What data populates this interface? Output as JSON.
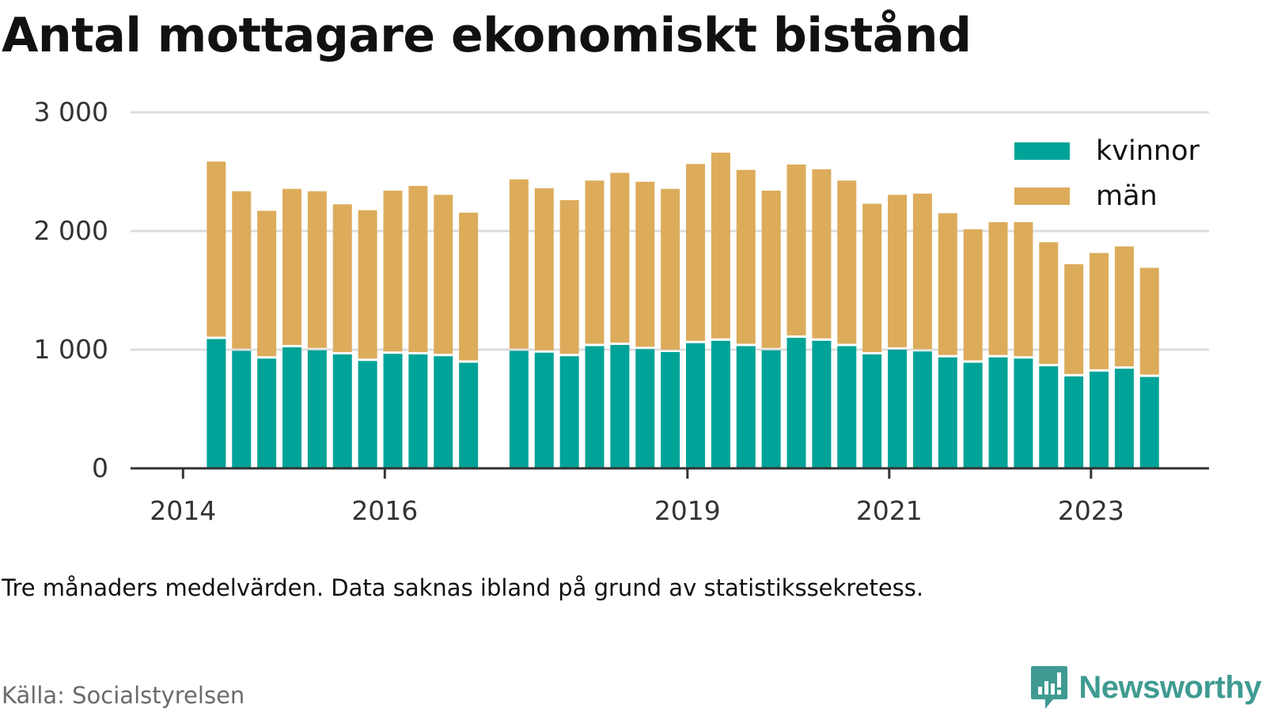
{
  "title": "Antal mottagare ekonomiskt bistånd",
  "note": "Tre månaders medelvärden. Data saknas ibland på grund av statistikssekretess.",
  "source": "Källa: Socialstyrelsen",
  "brand": {
    "name": "Newsworthy",
    "icon": "newsworthy-logo-icon",
    "color": "#3f9b91"
  },
  "colors": {
    "kvinnor": "#00a398",
    "man": "#dcac5b",
    "grid": "#dddddd",
    "axis": "#333333"
  },
  "chart_data": {
    "type": "bar",
    "stacked": true,
    "title": "Antal mottagare ekonomiskt bistånd",
    "xlabel": "",
    "ylabel": "",
    "ylim": [
      0,
      3000
    ],
    "yticks": [
      {
        "value": 0,
        "label": "0"
      },
      {
        "value": 1000,
        "label": "1 000"
      },
      {
        "value": 2000,
        "label": "2 000"
      },
      {
        "value": 3000,
        "label": "3 000"
      }
    ],
    "xticks": [
      {
        "value": 2014.0,
        "label": "2014"
      },
      {
        "value": 2016.0,
        "label": "2016"
      },
      {
        "value": 2019.0,
        "label": "2019"
      },
      {
        "value": 2021.0,
        "label": "2021"
      },
      {
        "value": 2023.0,
        "label": "2023"
      }
    ],
    "xlim": [
      2013.48,
      2024.17
    ],
    "x": [
      2014.33,
      2014.58,
      2014.83,
      2015.08,
      2015.33,
      2015.58,
      2015.83,
      2016.08,
      2016.33,
      2016.58,
      2016.83,
      2017.33,
      2017.58,
      2017.83,
      2018.08,
      2018.33,
      2018.58,
      2018.83,
      2019.08,
      2019.33,
      2019.58,
      2019.83,
      2020.08,
      2020.33,
      2020.58,
      2020.83,
      2021.08,
      2021.33,
      2021.58,
      2021.83,
      2022.08,
      2022.33,
      2022.58,
      2022.83,
      2023.08,
      2023.33,
      2023.58
    ],
    "series": [
      {
        "name": "kvinnor",
        "color": "#00a398",
        "values": [
          1090,
          990,
          925,
          1020,
          995,
          960,
          905,
          965,
          960,
          945,
          890,
          990,
          975,
          945,
          1030,
          1040,
          1005,
          980,
          1055,
          1075,
          1030,
          995,
          1100,
          1075,
          1030,
          960,
          1000,
          985,
          935,
          890,
          935,
          925,
          860,
          775,
          815,
          840,
          770
        ]
      },
      {
        "name": "män",
        "color": "#dcac5b",
        "values": [
          1495,
          1345,
          1245,
          1335,
          1340,
          1265,
          1270,
          1375,
          1420,
          1360,
          1265,
          1445,
          1385,
          1315,
          1395,
          1450,
          1410,
          1375,
          1510,
          1585,
          1485,
          1345,
          1460,
          1445,
          1395,
          1270,
          1305,
          1330,
          1215,
          1125,
          1140,
          1150,
          1045,
          945,
          1000,
          1030,
          920
        ]
      }
    ],
    "legend": {
      "position": "top-right",
      "entries": [
        "kvinnor",
        "män"
      ]
    },
    "grid": true
  }
}
